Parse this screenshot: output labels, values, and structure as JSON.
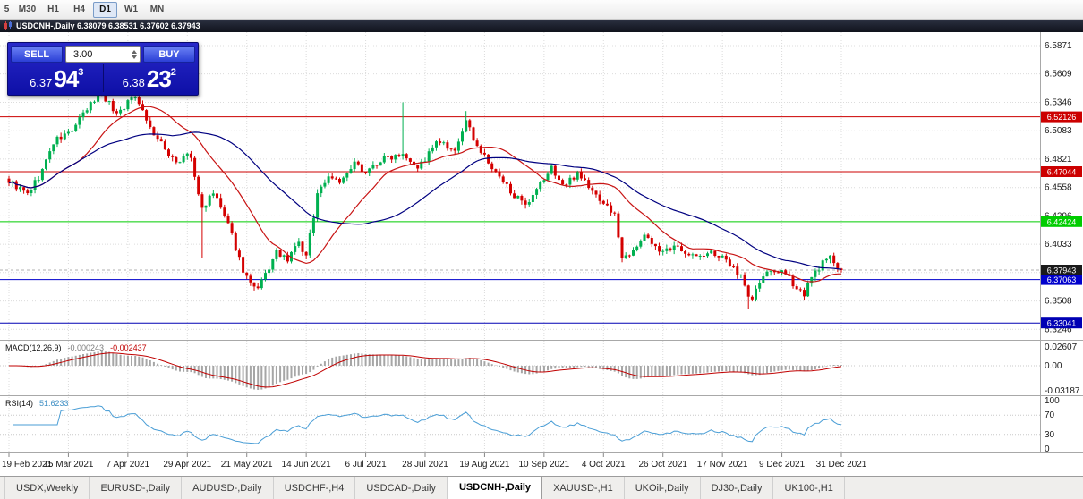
{
  "toolbar": {
    "timeframes": [
      {
        "label": "5",
        "active": false
      },
      {
        "label": "M30",
        "active": false
      },
      {
        "label": "H1",
        "active": false
      },
      {
        "label": "H4",
        "active": false
      },
      {
        "label": "D1",
        "active": true
      },
      {
        "label": "W1",
        "active": false
      },
      {
        "label": "MN",
        "active": false
      }
    ]
  },
  "chart_window": {
    "title": "USDCNH-,Daily  6.38079 6.38531 6.37602 6.37943"
  },
  "trade_panel": {
    "sell_label": "SELL",
    "buy_label": "BUY",
    "volume": "3.00",
    "sell_price": {
      "main": "6.37",
      "big": "94",
      "sup": "3"
    },
    "buy_price": {
      "main": "6.38",
      "big": "23",
      "sup": "2"
    }
  },
  "indicators": {
    "macd": {
      "name": "MACD(12,26,9)",
      "main": "-0.000243",
      "signal": "-0.002437",
      "axis": [
        "0.02607",
        "0.00",
        "-0.03187"
      ]
    },
    "rsi": {
      "name": "RSI(14)",
      "value": "51.6233",
      "axis": [
        "100",
        "70",
        "30",
        "0"
      ]
    }
  },
  "tabs": [
    {
      "label": "USDX,Weekly",
      "active": false
    },
    {
      "label": "EURUSD-,Daily",
      "active": false
    },
    {
      "label": "AUDUSD-,Daily",
      "active": false
    },
    {
      "label": "USDCHF-,H4",
      "active": false
    },
    {
      "label": "USDCAD-,Daily",
      "active": false
    },
    {
      "label": "USDCNH-,Daily",
      "active": true
    },
    {
      "label": "XAUUSD-,H1",
      "active": false
    },
    {
      "label": "UKOil-,Daily",
      "active": false
    },
    {
      "label": "DJ30-,Daily",
      "active": false
    },
    {
      "label": "UK100-,H1",
      "active": false
    }
  ],
  "chart_data": {
    "type": "candlestick",
    "symbol": "USDCNH-",
    "timeframe": "Daily",
    "ohlc_header": {
      "open": "6.38079",
      "high": "6.38531",
      "low": "6.37602",
      "close": "6.37943"
    },
    "n_candles": 225,
    "seed": 9,
    "noise": 0.0065,
    "wick": 0.0038,
    "last_close": 6.37943,
    "ma_fast_period": 20,
    "ma_slow_period": 45,
    "colors": {
      "up": "#00b050",
      "down": "#d40000",
      "ma_fast": "#c81414",
      "ma_slow": "#000080"
    },
    "price_axis_labels": [
      "6.5871",
      "6.5609",
      "6.5346",
      "6.5083",
      "6.4821",
      "6.4558",
      "6.4296",
      "6.4033",
      "6.3771",
      "6.3508",
      "6.3246"
    ],
    "date_labels": [
      "19 Feb 2021",
      "15 Mar 2021",
      "7 Apr 2021",
      "29 Apr 2021",
      "21 May 2021",
      "14 Jun 2021",
      "6 Jul 2021",
      "28 Jul 2021",
      "19 Aug 2021",
      "10 Sep 2021",
      "4 Oct 2021",
      "26 Oct 2021",
      "17 Nov 2021",
      "9 Dec 2021",
      "31 Dec 2021"
    ],
    "levels": [
      {
        "price": 6.52126,
        "label": "6.52126",
        "color": "#cc0000"
      },
      {
        "price": 6.47044,
        "label": "6.47044",
        "color": "#cc0000"
      },
      {
        "price": 6.42424,
        "label": "6.42424",
        "color": "#00cc00"
      },
      {
        "price": 6.37063,
        "label": "6.37063",
        "color": "#0000cc"
      },
      {
        "price": 6.33041,
        "label": "6.33041",
        "color": "#0000b4"
      }
    ],
    "current_price": {
      "label": "6.37943",
      "value": 6.37943,
      "color": "#1a1a1a"
    },
    "price_anchors": [
      [
        0,
        6.462
      ],
      [
        0.022,
        6.449
      ],
      [
        0.038,
        6.468
      ],
      [
        0.054,
        6.498
      ],
      [
        0.075,
        6.508
      ],
      [
        0.097,
        6.531
      ],
      [
        0.11,
        6.545
      ],
      [
        0.129,
        6.524
      ],
      [
        0.153,
        6.542
      ],
      [
        0.17,
        6.51
      ],
      [
        0.188,
        6.49
      ],
      [
        0.204,
        6.478
      ],
      [
        0.217,
        6.489
      ],
      [
        0.231,
        6.436
      ],
      [
        0.247,
        6.451
      ],
      [
        0.267,
        6.413
      ],
      [
        0.282,
        6.378
      ],
      [
        0.297,
        6.358
      ],
      [
        0.31,
        6.378
      ],
      [
        0.323,
        6.397
      ],
      [
        0.335,
        6.386
      ],
      [
        0.346,
        6.407
      ],
      [
        0.357,
        6.391
      ],
      [
        0.371,
        6.452
      ],
      [
        0.385,
        6.467
      ],
      [
        0.4,
        6.461
      ],
      [
        0.415,
        6.477
      ],
      [
        0.43,
        6.471
      ],
      [
        0.447,
        6.481
      ],
      [
        0.473,
        6.489
      ],
      [
        0.492,
        6.474
      ],
      [
        0.516,
        6.499
      ],
      [
        0.535,
        6.486
      ],
      [
        0.548,
        6.517
      ],
      [
        0.566,
        6.49
      ],
      [
        0.585,
        6.468
      ],
      [
        0.604,
        6.452
      ],
      [
        0.622,
        6.436
      ],
      [
        0.637,
        6.457
      ],
      [
        0.652,
        6.474
      ],
      [
        0.667,
        6.456
      ],
      [
        0.684,
        6.471
      ],
      [
        0.699,
        6.453
      ],
      [
        0.716,
        6.441
      ],
      [
        0.729,
        6.428
      ],
      [
        0.737,
        6.388
      ],
      [
        0.751,
        6.401
      ],
      [
        0.766,
        6.411
      ],
      [
        0.785,
        6.395
      ],
      [
        0.804,
        6.401
      ],
      [
        0.826,
        6.391
      ],
      [
        0.847,
        6.396
      ],
      [
        0.866,
        6.384
      ],
      [
        0.882,
        6.373
      ],
      [
        0.89,
        6.349
      ],
      [
        0.905,
        6.373
      ],
      [
        0.923,
        6.38
      ],
      [
        0.94,
        6.369
      ],
      [
        0.955,
        6.357
      ],
      [
        0.966,
        6.374
      ],
      [
        0.976,
        6.385
      ],
      [
        0.988,
        6.391
      ],
      [
        1,
        6.3794
      ]
    ],
    "wick_spikes": [
      {
        "t": 0.11,
        "high": 6.5565
      },
      {
        "t": 0.155,
        "high": 6.5545
      },
      {
        "t": 0.231,
        "low": 6.391
      },
      {
        "t": 0.473,
        "high": 6.5346
      },
      {
        "t": 0.548,
        "high": 6.5265
      },
      {
        "t": 0.89,
        "low": 6.3431
      },
      {
        "t": 0.955,
        "low": 6.3512
      }
    ]
  }
}
